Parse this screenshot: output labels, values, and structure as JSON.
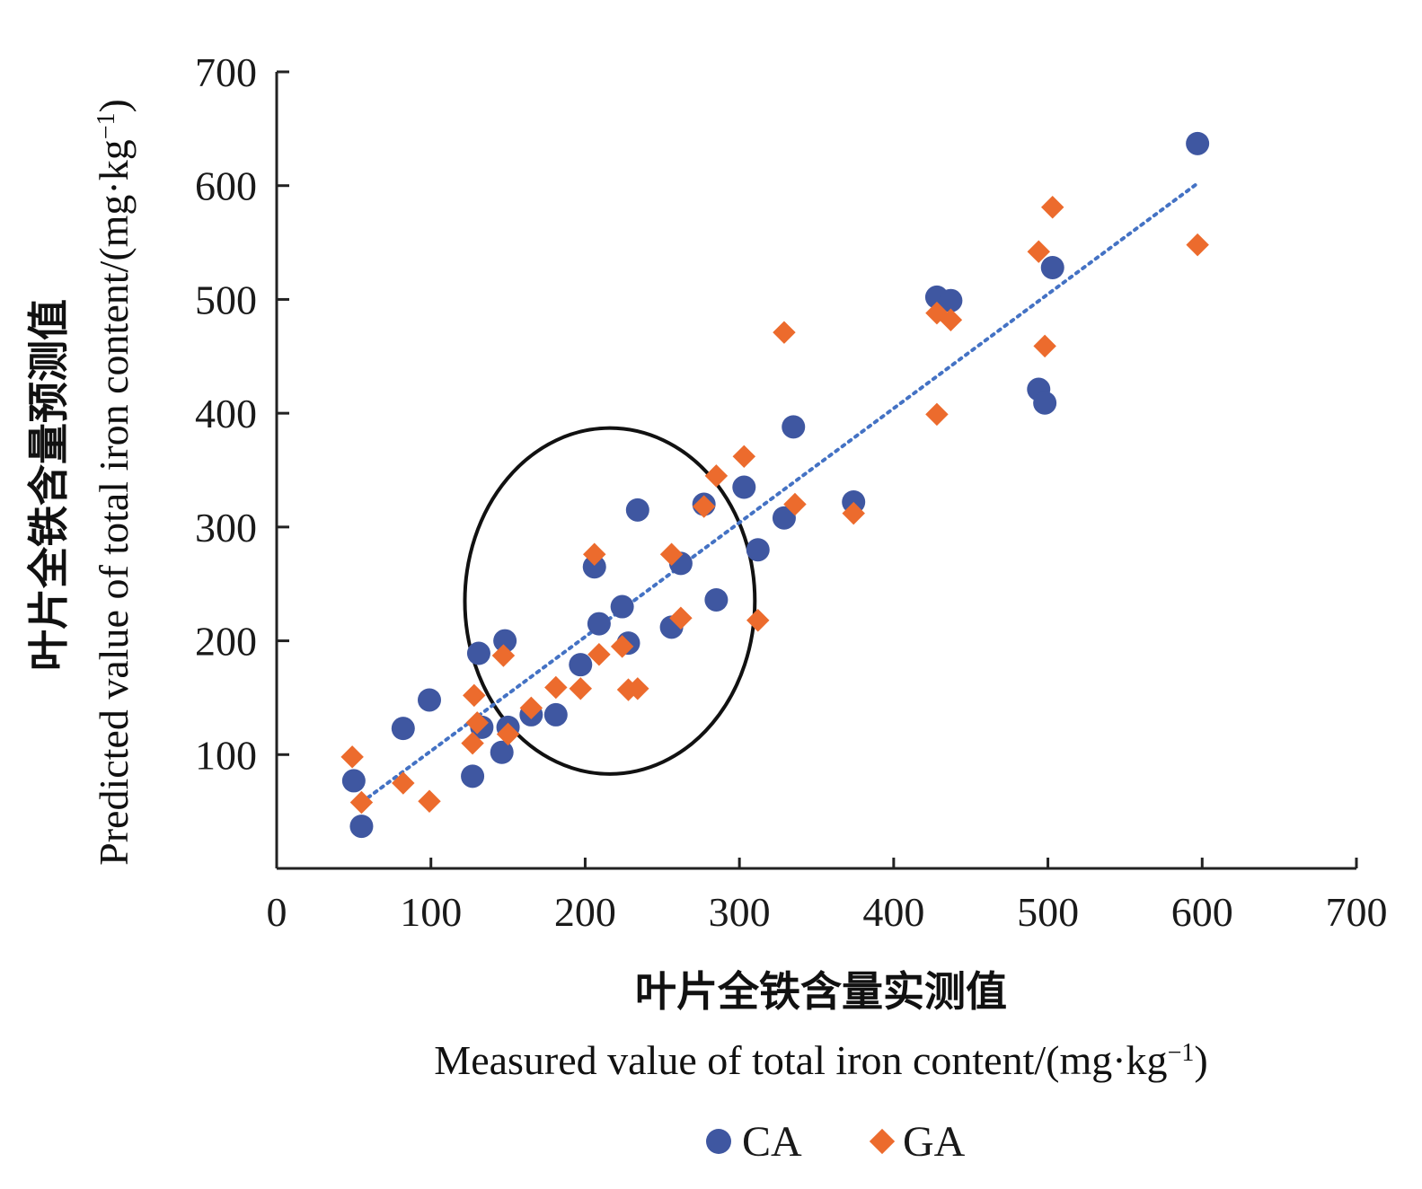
{
  "chart_data": {
    "type": "scatter",
    "xlabel_cn": "叶片全铁含量实测值",
    "xlabel_en": "Measured value of total iron content/(mg·kg",
    "ylabel_cn": "叶片全铁含量预测值",
    "ylabel_en": "Predicted value of total iron content/(mg·kg",
    "unit_exponent": "−1",
    "unit_close": ")",
    "xlim": [
      0,
      700
    ],
    "ylim": [
      0,
      700
    ],
    "x_ticks": [
      "0",
      "100",
      "200",
      "300",
      "400",
      "500",
      "600",
      "700"
    ],
    "y_ticks": [
      "100",
      "200",
      "300",
      "400",
      "500",
      "600",
      "700"
    ],
    "grid": false,
    "legend_position": "bottom-center",
    "trendline": {
      "style": "dotted",
      "color": "#4472C4",
      "x": [
        55,
        597
      ],
      "y": [
        58,
        602
      ]
    },
    "highlight_ellipse": {
      "cx": 216,
      "cy": 235,
      "rx": 94,
      "ry": 152
    },
    "series": [
      {
        "name": "CA",
        "marker": "circle",
        "color": "#3F57A1",
        "points": [
          [
            50,
            77
          ],
          [
            55,
            37
          ],
          [
            82,
            123
          ],
          [
            99,
            148
          ],
          [
            127,
            81
          ],
          [
            131,
            189
          ],
          [
            133,
            124
          ],
          [
            146,
            102
          ],
          [
            148,
            200
          ],
          [
            150,
            124
          ],
          [
            165,
            135
          ],
          [
            181,
            135
          ],
          [
            197,
            179
          ],
          [
            206,
            265
          ],
          [
            209,
            215
          ],
          [
            224,
            230
          ],
          [
            228,
            198
          ],
          [
            234,
            315
          ],
          [
            256,
            212
          ],
          [
            262,
            268
          ],
          [
            277,
            320
          ],
          [
            285,
            236
          ],
          [
            303,
            335
          ],
          [
            312,
            280
          ],
          [
            329,
            308
          ],
          [
            335,
            388
          ],
          [
            374,
            322
          ],
          [
            428,
            502
          ],
          [
            437,
            499
          ],
          [
            494,
            421
          ],
          [
            498,
            409
          ],
          [
            503,
            528
          ],
          [
            597,
            637
          ]
        ]
      },
      {
        "name": "GA",
        "marker": "diamond",
        "color": "#EC6B2D",
        "points": [
          [
            49,
            98
          ],
          [
            55,
            58
          ],
          [
            82,
            75
          ],
          [
            99,
            59
          ],
          [
            127,
            110
          ],
          [
            128,
            152
          ],
          [
            130,
            128
          ],
          [
            147,
            187
          ],
          [
            150,
            118
          ],
          [
            165,
            141
          ],
          [
            181,
            159
          ],
          [
            197,
            158
          ],
          [
            206,
            276
          ],
          [
            209,
            188
          ],
          [
            224,
            195
          ],
          [
            228,
            157
          ],
          [
            234,
            158
          ],
          [
            256,
            276
          ],
          [
            262,
            220
          ],
          [
            277,
            318
          ],
          [
            285,
            345
          ],
          [
            303,
            362
          ],
          [
            312,
            218
          ],
          [
            329,
            471
          ],
          [
            336,
            320
          ],
          [
            374,
            312
          ],
          [
            428,
            399
          ],
          [
            428,
            488
          ],
          [
            437,
            482
          ],
          [
            494,
            542
          ],
          [
            498,
            459
          ],
          [
            503,
            581
          ],
          [
            597,
            548
          ]
        ]
      }
    ]
  }
}
